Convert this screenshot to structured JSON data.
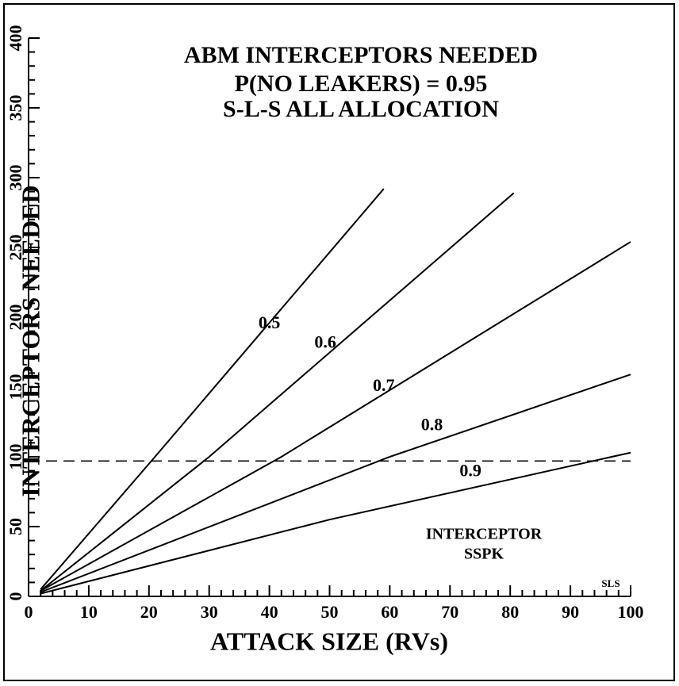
{
  "chart_data": {
    "type": "line",
    "title": [
      "ABM INTERCEPTORS NEEDED",
      "P(NO LEAKERS) = 0.95",
      "S-L-S ALL ALLOCATION"
    ],
    "xlabel": "ATTACK SIZE (RVs)",
    "ylabel": "INTERCEPTORS NEEDED",
    "xlim": [
      0,
      100
    ],
    "xticks": [
      0,
      10,
      20,
      30,
      40,
      50,
      60,
      70,
      80,
      90,
      100
    ],
    "ylim": [
      0,
      400
    ],
    "yticks": [
      0,
      50,
      100,
      150,
      200,
      250,
      300,
      350,
      400
    ],
    "series": [
      {
        "name": "0.5",
        "color": "#000",
        "x": [
          2,
          21,
          59
        ],
        "values": [
          5,
          100,
          292
        ]
      },
      {
        "name": "0.6",
        "color": "#000",
        "x": [
          2,
          30,
          80.6
        ],
        "values": [
          4,
          100,
          289
        ]
      },
      {
        "name": "0.7",
        "color": "#000",
        "x": [
          2,
          42,
          100
        ],
        "values": [
          4,
          100,
          254
        ]
      },
      {
        "name": "0.8",
        "color": "#000",
        "x": [
          2,
          60,
          100
        ],
        "values": [
          3,
          100,
          159
        ]
      },
      {
        "name": "0.9",
        "color": "#000",
        "x": [
          2,
          50,
          100
        ],
        "values": [
          2,
          55,
          103
        ]
      }
    ],
    "reference_line": 97,
    "annotations": [
      "INTERCEPTOR",
      "SSPK",
      "SLS"
    ]
  }
}
